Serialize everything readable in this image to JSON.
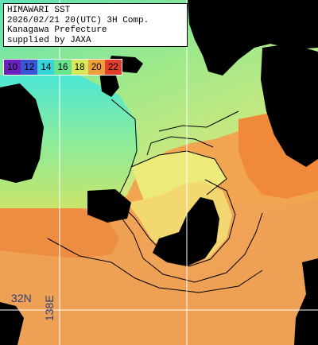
{
  "info": {
    "lines": [
      "HIMAWARI SST",
      "2026/02/21 20(UTC) 3H Comp.",
      "Kanagawa Prefecture",
      "supplied by JAXA"
    ]
  },
  "legend": {
    "steps": [
      {
        "label": "10",
        "color": "#6a1fbf"
      },
      {
        "label": "12",
        "color": "#3b55d6"
      },
      {
        "label": "14",
        "color": "#34d4d9"
      },
      {
        "label": "16",
        "color": "#68e28b"
      },
      {
        "label": "18",
        "color": "#d7e85c"
      },
      {
        "label": "20",
        "color": "#ef9e3c"
      },
      {
        "label": "22",
        "color": "#e23d2c"
      }
    ]
  },
  "grid": {
    "lat_label": "32N",
    "lon_label": "138E"
  }
}
